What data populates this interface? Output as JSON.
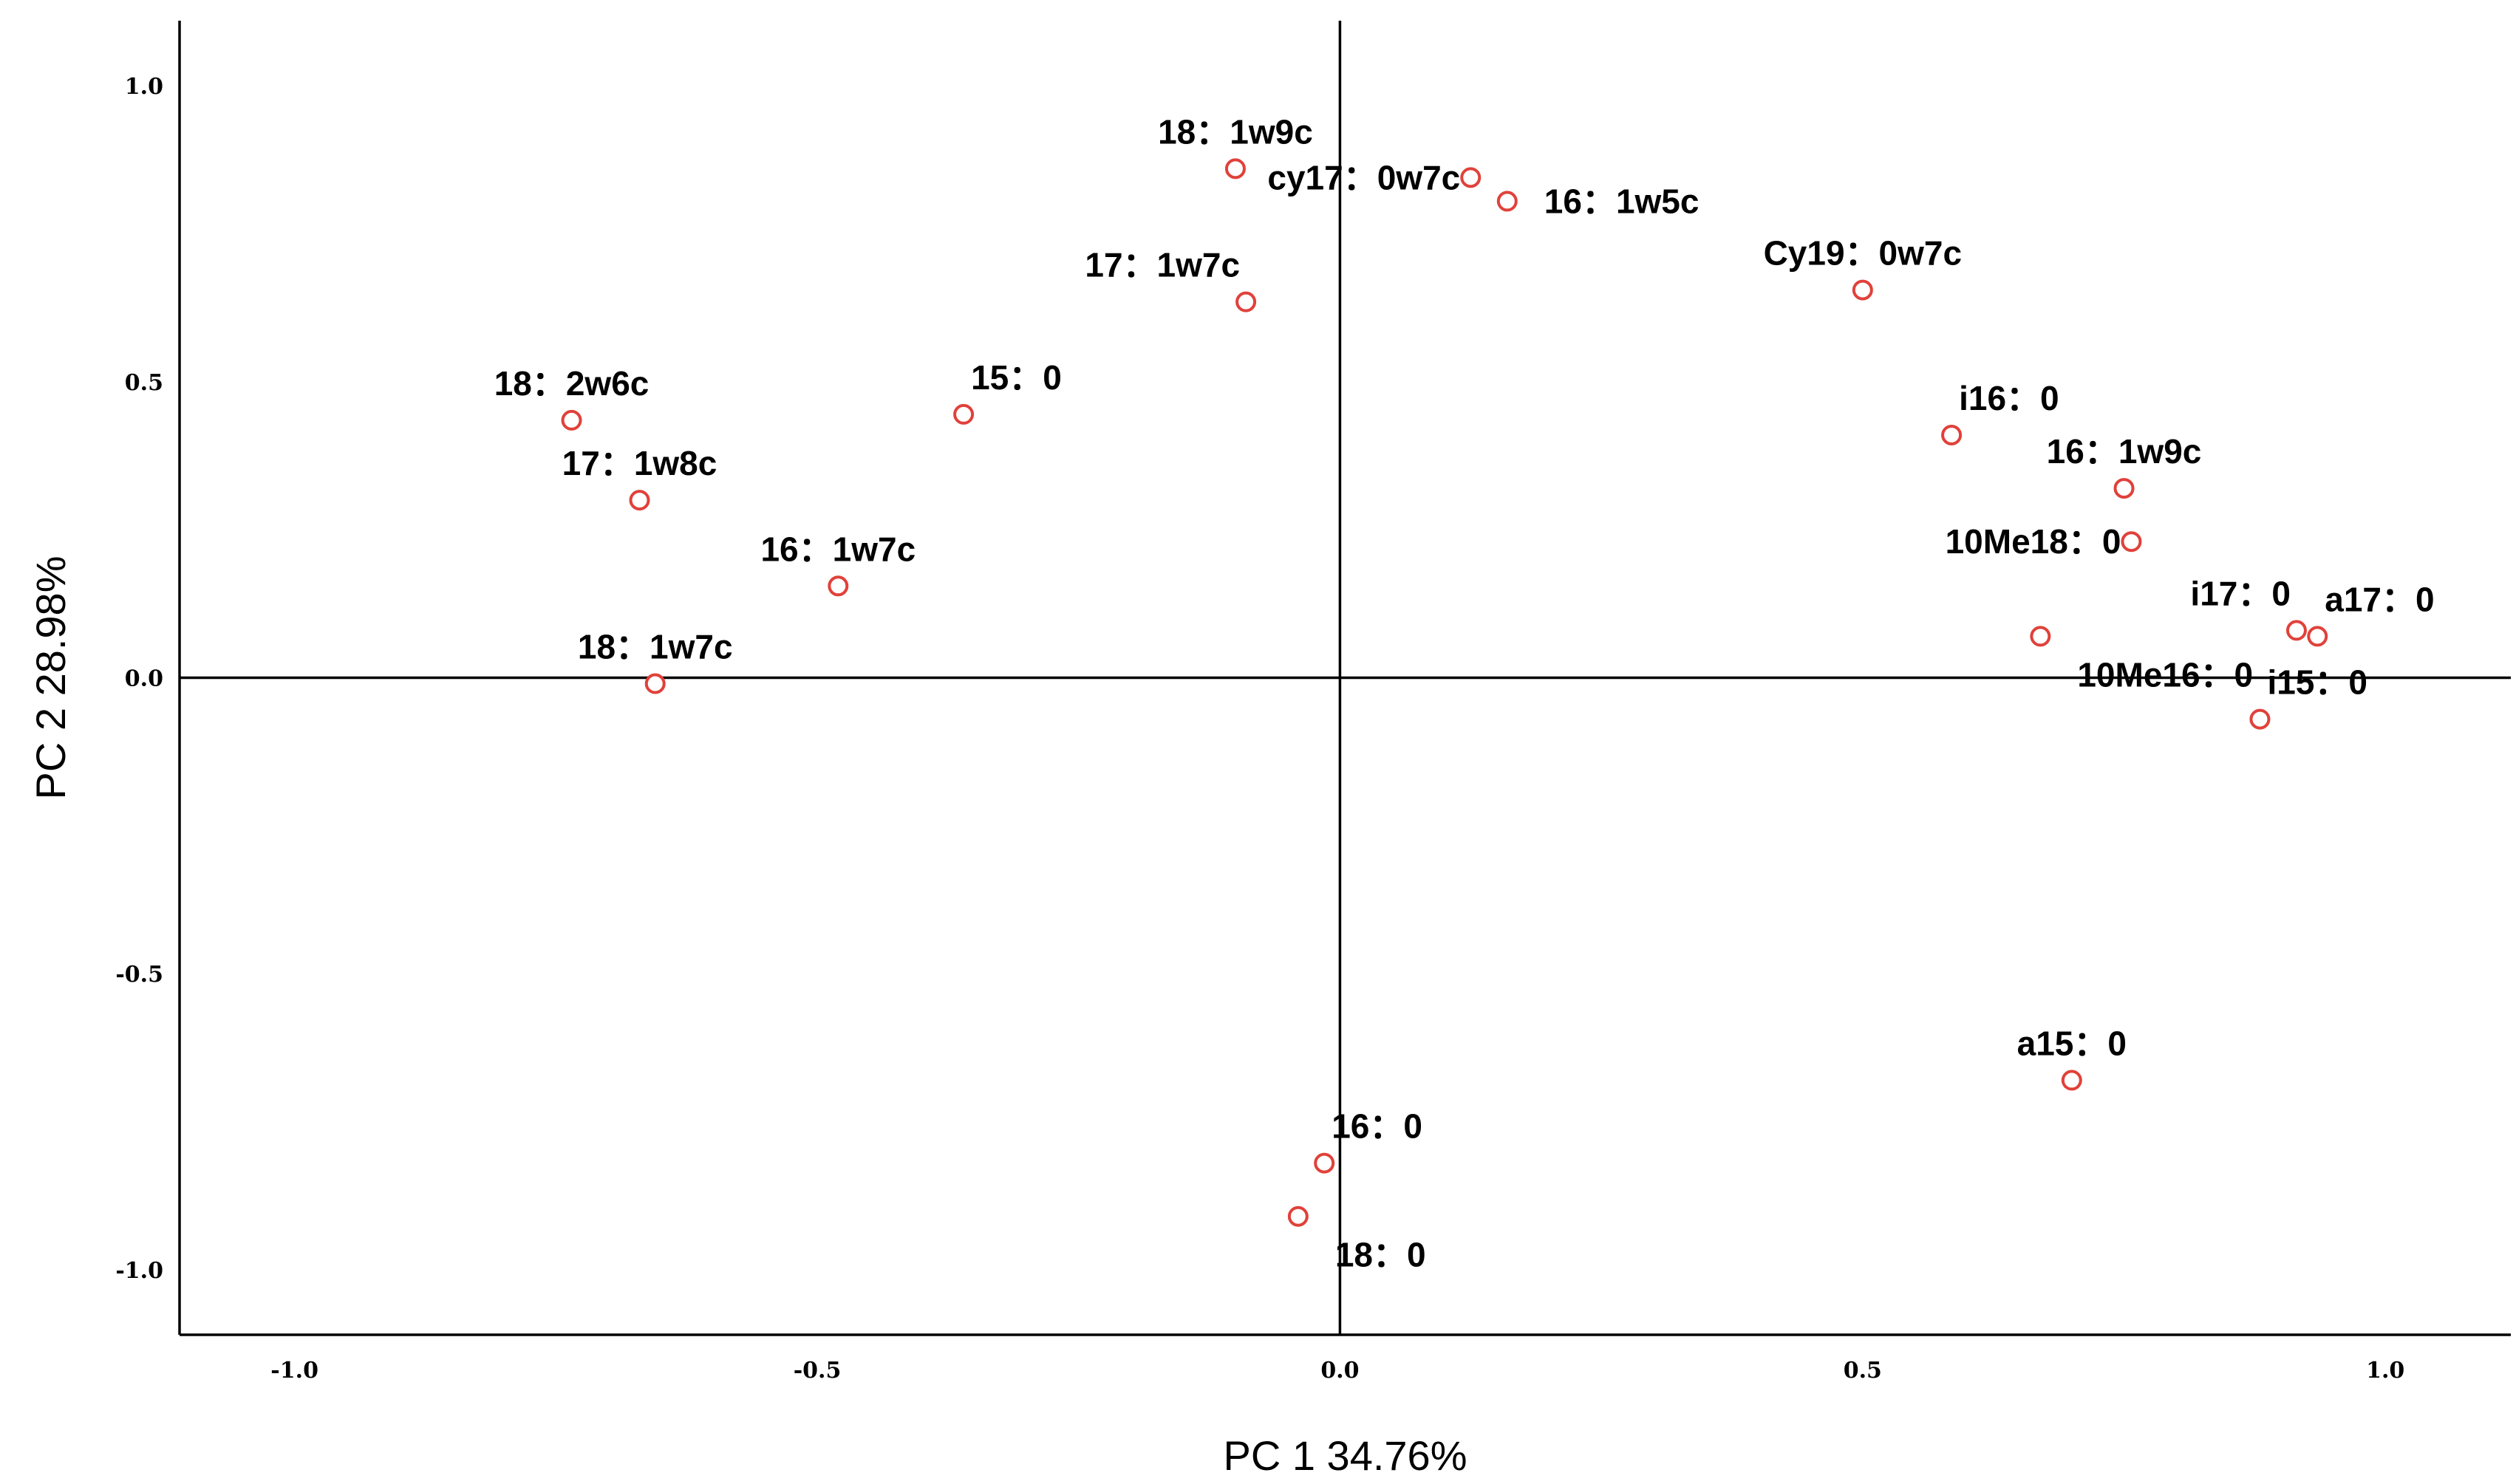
{
  "chart_data": {
    "type": "scatter",
    "xlabel": "PC 1 34.76%",
    "ylabel": "PC 2 28.98%",
    "xlim": [
      -1.11,
      1.12
    ],
    "ylim": [
      -1.11,
      1.11
    ],
    "x_ticks": [
      -1.0,
      -0.5,
      0.0,
      0.5,
      1.0
    ],
    "x_tick_labels": [
      "-1.0",
      "-0.5",
      "0.0",
      "0.5",
      "1.0"
    ],
    "y_ticks": [
      1.0,
      0.5,
      0.0,
      -0.5,
      -1.0
    ],
    "y_tick_labels": [
      "1.0",
      "0.5",
      "0.0",
      "-0.5",
      "-1.0"
    ],
    "marker_color": "#e0413a",
    "reference_lines": {
      "x": 0,
      "y": 0
    },
    "points": [
      {
        "label": "18：1w9c",
        "x": -0.1,
        "y": 0.86,
        "anchor": "up"
      },
      {
        "label": "cy17：0w7c",
        "x": 0.125,
        "y": 0.845,
        "anchor": "left"
      },
      {
        "label": "16：1w5c",
        "x": 0.16,
        "y": 0.805,
        "anchor": "right"
      },
      {
        "label": "17：1w7c",
        "x": -0.09,
        "y": 0.635,
        "anchor": "upleft"
      },
      {
        "label": "Cy19：0w7c",
        "x": 0.5,
        "y": 0.655,
        "anchor": "up"
      },
      {
        "label": "18：2w6c",
        "x": -0.735,
        "y": 0.435,
        "anchor": "up"
      },
      {
        "label": "15：0",
        "x": -0.36,
        "y": 0.445,
        "anchor": "upright"
      },
      {
        "label": "i16：0",
        "x": 0.585,
        "y": 0.41,
        "anchor": "upright"
      },
      {
        "label": "17：1w8c",
        "x": -0.67,
        "y": 0.3,
        "anchor": "up"
      },
      {
        "label": "16：1w9c",
        "x": 0.75,
        "y": 0.32,
        "anchor": "up"
      },
      {
        "label": "10Me18：0",
        "x": 0.757,
        "y": 0.23,
        "anchor": "left"
      },
      {
        "label": "16：1w7c",
        "x": -0.48,
        "y": 0.155,
        "anchor": "up"
      },
      {
        "label": "a17：0",
        "x": 0.935,
        "y": 0.07,
        "anchor": "upright"
      },
      {
        "label": "i17：0",
        "x": 0.915,
        "y": 0.08,
        "anchor": "upleft"
      },
      {
        "label": "10Me16：0",
        "x": 0.67,
        "y": 0.07,
        "anchor": "downright"
      },
      {
        "label": "18：1w7c",
        "x": -0.655,
        "y": -0.01,
        "anchor": "up"
      },
      {
        "label": "i15：0",
        "x": 0.88,
        "y": -0.07,
        "anchor": "upright"
      },
      {
        "label": "a15：0",
        "x": 0.7,
        "y": -0.68,
        "anchor": "up"
      },
      {
        "label": "16：0",
        "x": -0.015,
        "y": -0.82,
        "anchor": "upright"
      },
      {
        "label": "18：0",
        "x": -0.04,
        "y": -0.91,
        "anchor": "downright"
      }
    ]
  }
}
